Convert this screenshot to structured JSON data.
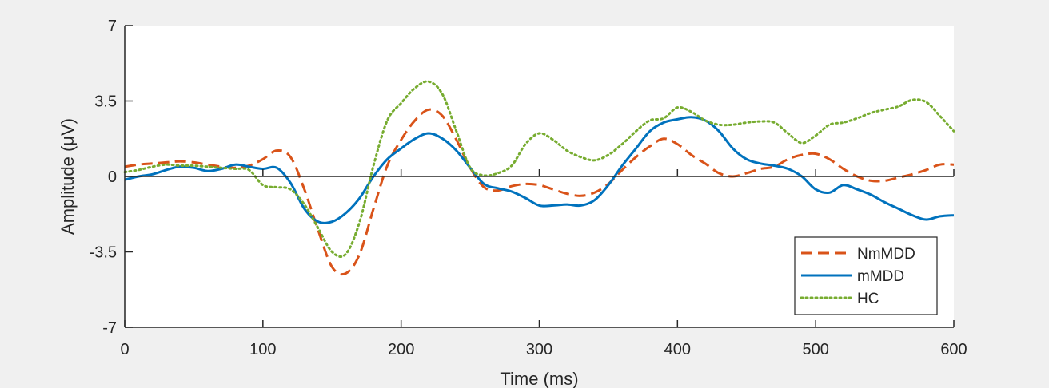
{
  "chart_data": {
    "type": "line",
    "title": "",
    "xlabel": "Time (ms)",
    "ylabel": "Amplitude (μV)",
    "xlim": [
      0,
      600
    ],
    "ylim": [
      -7,
      7
    ],
    "x_ticks": [
      0,
      100,
      200,
      300,
      400,
      500,
      600
    ],
    "x_tick_labels": [
      "0",
      "100",
      "200",
      "300",
      "400",
      "500",
      "600"
    ],
    "y_ticks": [
      -7,
      -3.5,
      0,
      3.5,
      7
    ],
    "y_tick_labels": [
      "-7",
      "-3.5",
      "0",
      "3.5",
      "7"
    ],
    "grid": false,
    "zero_line": true,
    "legend_position": "bottom-right",
    "x": [
      0,
      10,
      20,
      30,
      40,
      50,
      60,
      70,
      80,
      90,
      100,
      110,
      120,
      130,
      140,
      150,
      160,
      170,
      180,
      190,
      200,
      210,
      220,
      230,
      240,
      250,
      260,
      270,
      280,
      290,
      300,
      310,
      320,
      330,
      340,
      350,
      360,
      370,
      380,
      390,
      400,
      410,
      420,
      430,
      440,
      450,
      460,
      470,
      480,
      490,
      500,
      510,
      520,
      530,
      540,
      550,
      560,
      570,
      580,
      590,
      600
    ],
    "series": [
      {
        "name": "NmMDD",
        "color": "#d95319",
        "style": "dashed",
        "values": [
          0.45,
          0.55,
          0.6,
          0.65,
          0.7,
          0.65,
          0.55,
          0.45,
          0.4,
          0.5,
          0.8,
          1.2,
          0.9,
          -0.6,
          -2.5,
          -4.2,
          -4.5,
          -3.6,
          -1.5,
          0.5,
          1.7,
          2.6,
          3.1,
          2.8,
          1.7,
          0.4,
          -0.5,
          -0.65,
          -0.45,
          -0.35,
          -0.4,
          -0.6,
          -0.8,
          -0.9,
          -0.75,
          -0.35,
          0.3,
          0.9,
          1.4,
          1.75,
          1.5,
          1.0,
          0.6,
          0.15,
          0.0,
          0.15,
          0.35,
          0.45,
          0.8,
          1.0,
          1.05,
          0.8,
          0.35,
          0.0,
          -0.2,
          -0.2,
          -0.05,
          0.1,
          0.3,
          0.55,
          0.55
        ]
      },
      {
        "name": "mMDD",
        "color": "#0072bd",
        "style": "solid",
        "values": [
          -0.15,
          0.0,
          0.1,
          0.3,
          0.45,
          0.4,
          0.25,
          0.35,
          0.55,
          0.45,
          0.35,
          0.4,
          -0.3,
          -1.5,
          -2.1,
          -2.1,
          -1.7,
          -1.0,
          0.0,
          0.8,
          1.3,
          1.75,
          2.0,
          1.75,
          1.2,
          0.4,
          -0.35,
          -0.55,
          -0.7,
          -1.0,
          -1.35,
          -1.35,
          -1.3,
          -1.35,
          -1.1,
          -0.4,
          0.5,
          1.3,
          2.1,
          2.5,
          2.65,
          2.75,
          2.6,
          2.1,
          1.3,
          0.8,
          0.6,
          0.5,
          0.35,
          0.0,
          -0.6,
          -0.75,
          -0.4,
          -0.6,
          -0.85,
          -1.2,
          -1.5,
          -1.8,
          -2.0,
          -1.85,
          -1.8
        ]
      },
      {
        "name": "HC",
        "color": "#77ac30",
        "style": "dotted",
        "values": [
          0.2,
          0.3,
          0.45,
          0.55,
          0.5,
          0.5,
          0.45,
          0.4,
          0.35,
          0.3,
          -0.4,
          -0.5,
          -0.6,
          -1.3,
          -2.4,
          -3.5,
          -3.6,
          -2.1,
          0.5,
          2.6,
          3.4,
          4.1,
          4.4,
          3.8,
          2.1,
          0.4,
          0.05,
          0.15,
          0.5,
          1.5,
          2.0,
          1.7,
          1.2,
          0.9,
          0.75,
          1.0,
          1.5,
          2.1,
          2.6,
          2.7,
          3.2,
          3.0,
          2.6,
          2.4,
          2.4,
          2.5,
          2.55,
          2.5,
          2.0,
          1.55,
          1.9,
          2.4,
          2.5,
          2.7,
          2.95,
          3.1,
          3.25,
          3.55,
          3.45,
          2.8,
          2.1
        ]
      }
    ]
  }
}
